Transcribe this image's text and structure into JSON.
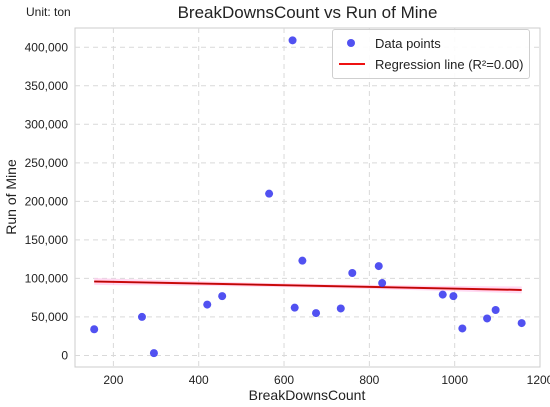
{
  "unit_label": "Unit: ton",
  "legend": {
    "points_label": "Data points",
    "line_label": "Regression line (R²=0.00)"
  },
  "colors": {
    "points": "#3333ee",
    "regression": "#ee1111",
    "confidence_band": "#ffccee",
    "grid": "#d9d9d9"
  },
  "chart_data": {
    "type": "scatter",
    "title": "BreakDownsCount vs Run of Mine",
    "xlabel": "BreakDownsCount",
    "ylabel": "Run of Mine",
    "xlim": [
      110,
      1200
    ],
    "ylim": [
      -15000,
      425000
    ],
    "x_ticks": [
      200,
      400,
      600,
      800,
      1000,
      1200
    ],
    "x_tick_labels": [
      "200",
      "400",
      "600",
      "800",
      "1000",
      "1200"
    ],
    "y_ticks": [
      0,
      50000,
      100000,
      150000,
      200000,
      250000,
      300000,
      350000,
      400000
    ],
    "y_tick_labels": [
      "0",
      "50,000",
      "100,000",
      "150,000",
      "200,000",
      "250,000",
      "300,000",
      "350,000",
      "400,000"
    ],
    "grid": true,
    "legend_position": "top-right",
    "series": [
      {
        "name": "Data points",
        "type": "scatter",
        "x": [
          155,
          267,
          295,
          420,
          455,
          565,
          620,
          625,
          643,
          675,
          733,
          760,
          822,
          830,
          972,
          997,
          1018,
          1076,
          1096,
          1157
        ],
        "y": [
          34000,
          50000,
          3000,
          66000,
          77000,
          210000,
          409000,
          62000,
          123000,
          55000,
          61000,
          107000,
          116000,
          94000,
          79000,
          77000,
          35000,
          48000,
          59000,
          42000
        ]
      },
      {
        "name": "Regression line (R²=0.00)",
        "type": "line",
        "x": [
          155,
          1157
        ],
        "y": [
          96000,
          85000
        ]
      }
    ]
  }
}
